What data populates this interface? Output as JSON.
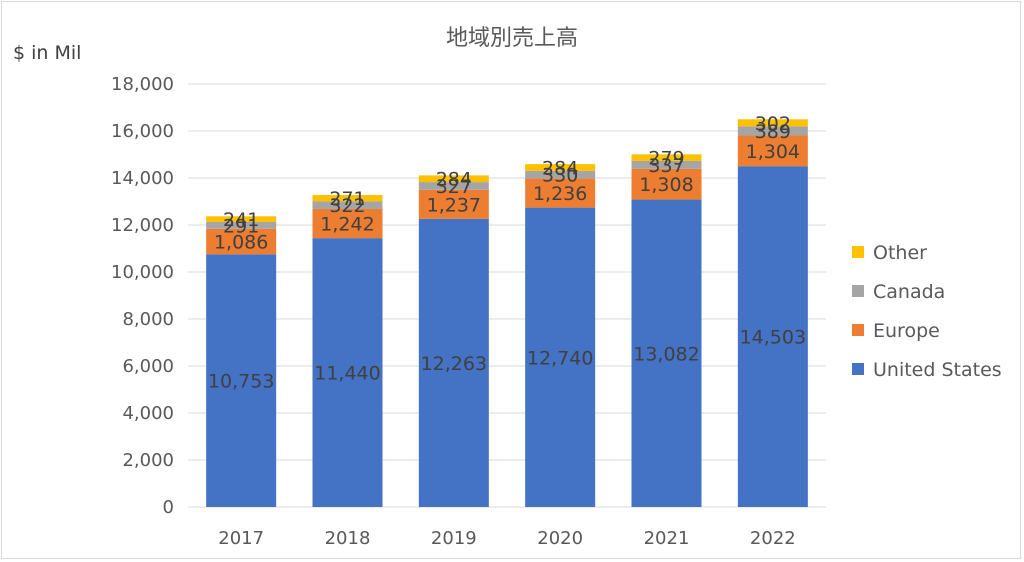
{
  "chart_data": {
    "type": "bar",
    "stacked": true,
    "title": "地域別売上高",
    "ylabel": "$ in Mil",
    "xlabel": "",
    "ylim": [
      0,
      18000
    ],
    "yticks": [
      0,
      2000,
      4000,
      6000,
      8000,
      10000,
      12000,
      14000,
      16000,
      18000
    ],
    "ytick_labels": [
      "0",
      "2,000",
      "4,000",
      "6,000",
      "8,000",
      "10,000",
      "12,000",
      "14,000",
      "16,000",
      "18,000"
    ],
    "grid": true,
    "legend_position": "right",
    "categories": [
      "2017",
      "2018",
      "2019",
      "2020",
      "2021",
      "2022"
    ],
    "series": [
      {
        "name": "United States",
        "color": "#4472c4",
        "values": [
          10753,
          11440,
          12263,
          12740,
          13082,
          14503
        ],
        "labels": [
          "10,753",
          "11,440",
          "12,263",
          "12,740",
          "13,082",
          "14,503"
        ]
      },
      {
        "name": "Europe",
        "color": "#ed7d31",
        "values": [
          1086,
          1242,
          1237,
          1236,
          1308,
          1304
        ],
        "labels": [
          "1,086",
          "1,242",
          "1,237",
          "1,236",
          "1,308",
          "1,304"
        ]
      },
      {
        "name": "Canada",
        "color": "#a5a5a5",
        "values": [
          291,
          322,
          327,
          330,
          337,
          389
        ],
        "labels": [
          "291",
          "322",
          "327",
          "330",
          "337",
          "389"
        ]
      },
      {
        "name": "Other",
        "color": "#ffc000",
        "values": [
          241,
          271,
          284,
          284,
          279,
          302
        ],
        "labels": [
          "241",
          "271",
          "284",
          "284",
          "279",
          "302"
        ]
      }
    ]
  }
}
